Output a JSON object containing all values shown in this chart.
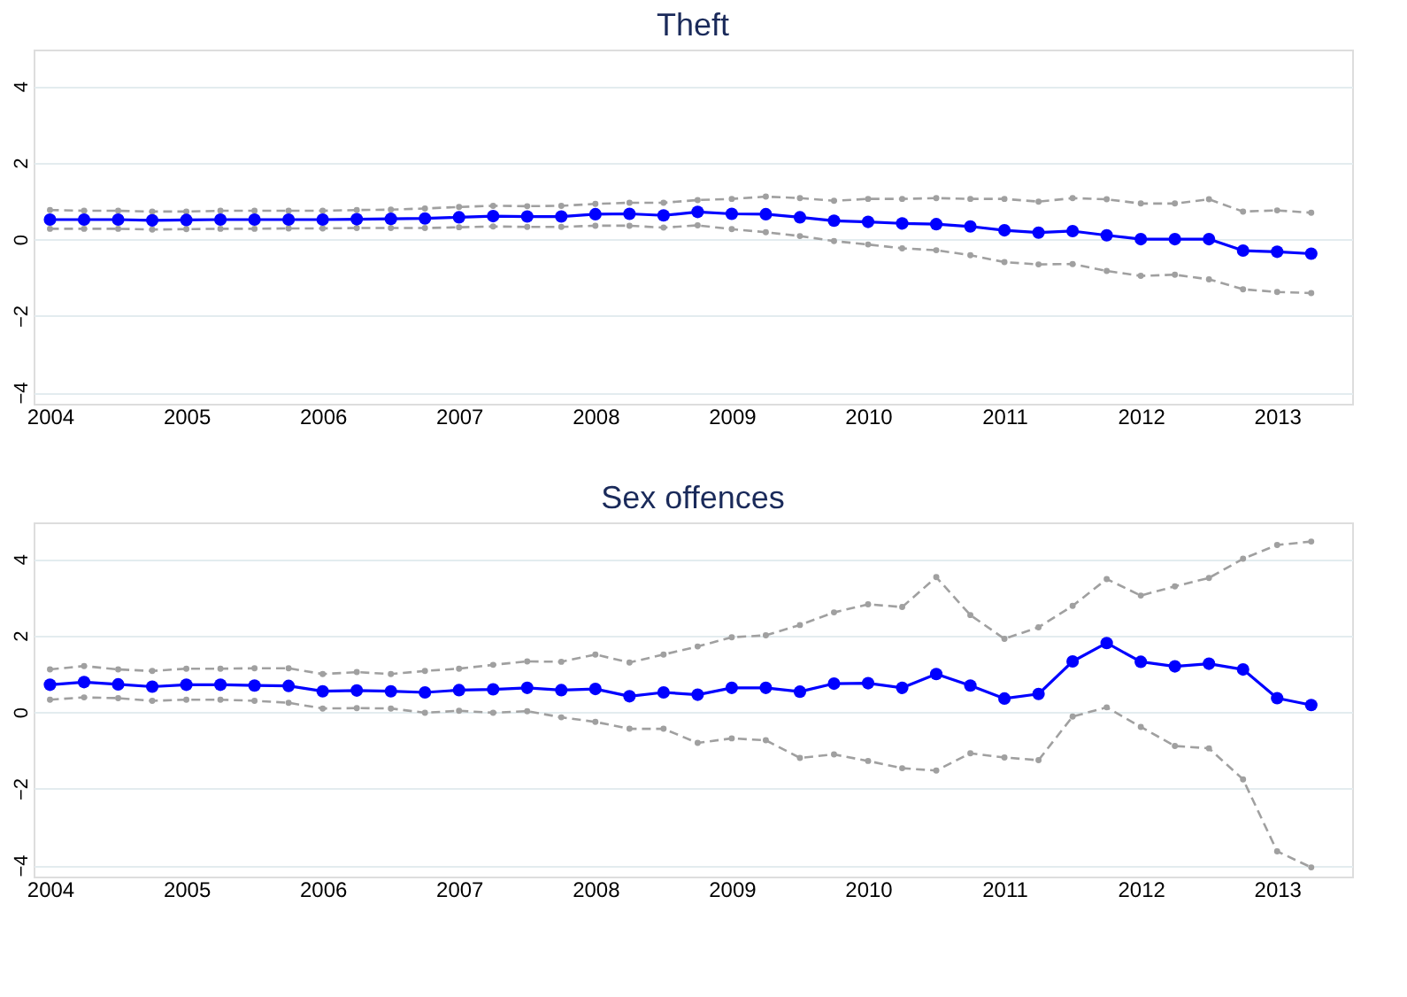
{
  "chart_data": [
    {
      "type": "line",
      "title": "Theft",
      "x": [
        2004,
        2004.25,
        2004.5,
        2004.75,
        2005,
        2005.25,
        2005.5,
        2005.75,
        2006,
        2006.25,
        2006.5,
        2006.75,
        2007,
        2007.25,
        2007.5,
        2007.75,
        2008,
        2008.25,
        2008.5,
        2008.75,
        2009,
        2009.25,
        2009.5,
        2009.75,
        2010,
        2010.25,
        2010.5,
        2010.75,
        2011,
        2011.25,
        2011.5,
        2011.75,
        2012,
        2012.25,
        2012.5,
        2012.75,
        2013,
        2013.25
      ],
      "xlim": [
        2003.88,
        2013.55
      ],
      "xticks": [
        2004,
        2005,
        2006,
        2007,
        2008,
        2009,
        2010,
        2011,
        2012,
        2013
      ],
      "ylim": [
        -4.3,
        4.95
      ],
      "yticks": [
        -4,
        -2,
        0,
        2,
        4
      ],
      "grid": "y",
      "series": [
        {
          "color": "#a0a0a0",
          "line_style": "dashed",
          "marker": "circle",
          "values": [
            0.76,
            0.74,
            0.74,
            0.72,
            0.72,
            0.74,
            0.74,
            0.74,
            0.74,
            0.76,
            0.77,
            0.8,
            0.84,
            0.87,
            0.86,
            0.87,
            0.92,
            0.95,
            0.95,
            1.02,
            1.05,
            1.11,
            1.07,
            1.0,
            1.05,
            1.05,
            1.07,
            1.05,
            1.05,
            0.98,
            1.07,
            1.04,
            0.93,
            0.93,
            1.04,
            0.72,
            0.75,
            0.69
          ]
        },
        {
          "color": "#a0a0a0",
          "line_style": "dashed",
          "marker": "circle",
          "values": [
            0.27,
            0.27,
            0.27,
            0.25,
            0.26,
            0.27,
            0.27,
            0.28,
            0.28,
            0.29,
            0.29,
            0.29,
            0.31,
            0.33,
            0.32,
            0.32,
            0.35,
            0.35,
            0.3,
            0.36,
            0.26,
            0.18,
            0.08,
            -0.05,
            -0.14,
            -0.24,
            -0.29,
            -0.42,
            -0.6,
            -0.66,
            -0.65,
            -0.83,
            -0.96,
            -0.93,
            -1.05,
            -1.31,
            -1.38,
            -1.41
          ]
        },
        {
          "color": "#0000ff",
          "line_style": "solid",
          "marker": "circle",
          "values": [
            0.51,
            0.51,
            0.51,
            0.49,
            0.5,
            0.51,
            0.51,
            0.51,
            0.51,
            0.52,
            0.53,
            0.54,
            0.57,
            0.6,
            0.59,
            0.59,
            0.65,
            0.66,
            0.62,
            0.71,
            0.66,
            0.65,
            0.57,
            0.48,
            0.45,
            0.41,
            0.39,
            0.33,
            0.23,
            0.17,
            0.21,
            0.1,
            0.0,
            0.0,
            0.0,
            -0.3,
            -0.33,
            -0.38
          ]
        }
      ]
    },
    {
      "type": "line",
      "title": "Sex offences",
      "x": [
        2004,
        2004.25,
        2004.5,
        2004.75,
        2005,
        2005.25,
        2005.5,
        2005.75,
        2006,
        2006.25,
        2006.5,
        2006.75,
        2007,
        2007.25,
        2007.5,
        2007.75,
        2008,
        2008.25,
        2008.5,
        2008.75,
        2009,
        2009.25,
        2009.5,
        2009.75,
        2010,
        2010.25,
        2010.5,
        2010.75,
        2011,
        2011.25,
        2011.5,
        2011.75,
        2012,
        2012.25,
        2012.5,
        2012.75,
        2013,
        2013.25
      ],
      "xlim": [
        2003.88,
        2013.55
      ],
      "xticks": [
        2004,
        2005,
        2006,
        2007,
        2008,
        2009,
        2010,
        2011,
        2012,
        2013
      ],
      "ylim": [
        -4.3,
        4.95
      ],
      "yticks": [
        -4,
        -2,
        0,
        2,
        4
      ],
      "grid": "y",
      "series": [
        {
          "color": "#a0a0a0",
          "line_style": "dashed",
          "marker": "circle",
          "values": [
            1.11,
            1.2,
            1.11,
            1.07,
            1.13,
            1.13,
            1.14,
            1.14,
            0.99,
            1.04,
            0.99,
            1.07,
            1.13,
            1.23,
            1.32,
            1.31,
            1.5,
            1.29,
            1.5,
            1.71,
            1.95,
            2.0,
            2.27,
            2.6,
            2.81,
            2.74,
            3.52,
            2.53,
            1.91,
            2.21,
            2.77,
            3.47,
            3.04,
            3.28,
            3.5,
            4.0,
            4.36,
            4.45
          ]
        },
        {
          "color": "#a0a0a0",
          "line_style": "dashed",
          "marker": "circle",
          "values": [
            0.32,
            0.38,
            0.36,
            0.29,
            0.32,
            0.32,
            0.29,
            0.24,
            0.09,
            0.1,
            0.09,
            -0.02,
            0.03,
            -0.02,
            0.02,
            -0.14,
            -0.26,
            -0.44,
            -0.44,
            -0.81,
            -0.69,
            -0.74,
            -1.2,
            -1.11,
            -1.28,
            -1.47,
            -1.53,
            -1.08,
            -1.19,
            -1.26,
            -0.12,
            0.12,
            -0.39,
            -0.89,
            -0.95,
            -1.76,
            -3.64,
            -4.06
          ]
        },
        {
          "color": "#0000ff",
          "line_style": "solid",
          "marker": "circle",
          "values": [
            0.71,
            0.78,
            0.72,
            0.66,
            0.71,
            0.71,
            0.69,
            0.68,
            0.54,
            0.56,
            0.54,
            0.51,
            0.57,
            0.59,
            0.63,
            0.57,
            0.6,
            0.41,
            0.51,
            0.45,
            0.63,
            0.63,
            0.53,
            0.74,
            0.75,
            0.63,
            0.99,
            0.69,
            0.35,
            0.47,
            1.32,
            1.8,
            1.31,
            1.19,
            1.26,
            1.11,
            0.36,
            0.18
          ]
        }
      ]
    }
  ]
}
